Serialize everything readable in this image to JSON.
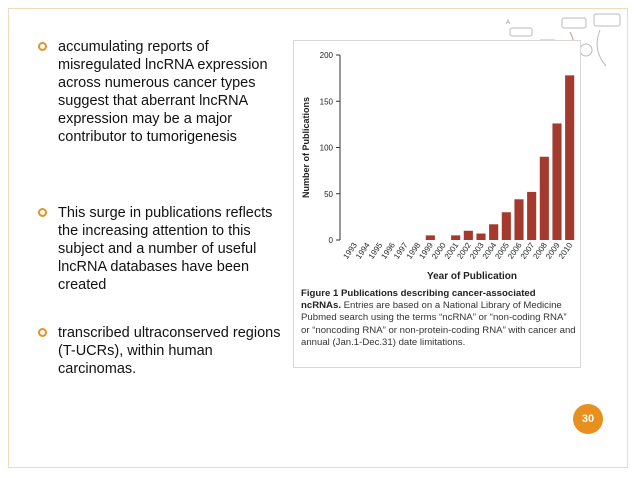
{
  "slide": {
    "bullets": [
      {
        "text": "accumulating reports of misregulated lncRNA expression across numerous cancer types suggest that aberrant lncRNA expression may be a major contributor to tumorigenesis"
      },
      {
        "text": "This surge in publications reflects the increasing attention to this subject  and a number of useful lncRNA databases have been created"
      },
      {
        "text": " transcribed ultraconserved regions (T-UCRs), within human carcinomas."
      }
    ],
    "page_number": "30",
    "figure": {
      "caption_title": "Figure 1 Publications describing cancer-associated ncRNAs.",
      "caption_body": "Entries are based on a National Library of Medicine Pubmed search using the terms “ncRNA” or “non-coding RNA” or “noncoding RNA” or non-protein-coding RNA” with cancer and annual (Jan.1-Dec.31) date limitations."
    },
    "colors": {
      "accent": "#e7901f",
      "bar": "#a43a2e"
    }
  },
  "chart_data": {
    "type": "bar",
    "categories": [
      "1993",
      "1994",
      "1995",
      "1996",
      "1997",
      "1998",
      "1999",
      "2000",
      "2001",
      "2002",
      "2003",
      "2004",
      "2005",
      "2006",
      "2007",
      "2008",
      "2009",
      "2010"
    ],
    "values": [
      0,
      0,
      0,
      0,
      0,
      0,
      5,
      0,
      5,
      10,
      7,
      17,
      30,
      44,
      52,
      90,
      126,
      178
    ],
    "xlabel": "Year of Publication",
    "ylabel": "Number of Publications",
    "ylim": [
      0,
      200
    ],
    "yticks": [
      0,
      50,
      100,
      150,
      200
    ],
    "grid": false
  }
}
